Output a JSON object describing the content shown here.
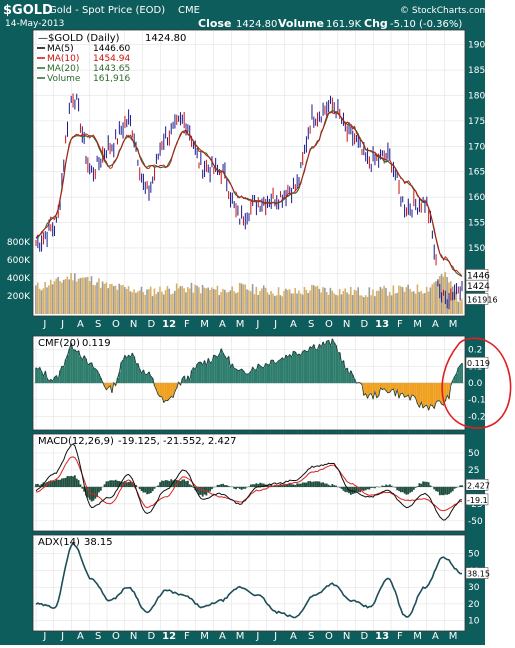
{
  "header": {
    "symbol": "$GOLD",
    "name": "Gold - Spot Price (EOD)",
    "exchange": "CME",
    "copyright": "© StockCharts.com",
    "date": "14-May-2013",
    "close_label": "Close",
    "close_value": "1424.80",
    "volume_label": "Volume",
    "volume_value": "161.9K",
    "chg_label": "Chg",
    "chg_value": "-5.10 (-0.36%)"
  },
  "colors": {
    "frame": "#0e5d5d",
    "price": "#1a1a8c",
    "ma5": "#1a1a1a",
    "ma10": "#cc1111",
    "ma20": "#2e6b2e",
    "volume": "#d6b06a",
    "cmf_pos": "#2d7c6c",
    "cmf_neg": "#f0a020",
    "macd": "#111111",
    "signal": "#dd2222",
    "hist": "#1f4f3f",
    "adx": "#1d4f57",
    "annotation": "#e02020"
  },
  "x_months": [
    "J",
    "J",
    "A",
    "S",
    "O",
    "N",
    "D",
    "12",
    "F",
    "M",
    "A",
    "M",
    "J",
    "J",
    "A",
    "S",
    "O",
    "N",
    "D",
    "13",
    "F",
    "M",
    "A",
    "M"
  ],
  "price_panel": {
    "legend": [
      {
        "label": "$GOLD (Daily)",
        "value": "1424.80",
        "color": "#000000"
      },
      {
        "label": "MA(5)",
        "value": "1446.60",
        "color": "#000000"
      },
      {
        "label": "MA(10)",
        "value": "1454.94",
        "color": "#cc1111"
      },
      {
        "label": "MA(20)",
        "value": "1443.65",
        "color": "#2e6b2e"
      },
      {
        "label": "Volume",
        "value": "161,916",
        "color": "#2e6b2e"
      }
    ],
    "right_ticks": [
      "190",
      "185",
      "180",
      "175",
      "170",
      "165",
      "160",
      "155",
      "150",
      "145",
      "140"
    ],
    "left_ticks": [
      "800K",
      "600K",
      "400K",
      "200K"
    ],
    "last_labels": [
      "1446",
      "1424",
      "161916"
    ]
  },
  "cmf_panel": {
    "label": "CMF(20)",
    "value": "0.119",
    "ticks": [
      "0.2",
      "0.1",
      "0.0",
      "-0.1",
      "-0.2"
    ],
    "last_label": "0.119"
  },
  "macd_panel": {
    "label": "MACD(12,26,9)",
    "values": "-19.125, -21.552, 2.427",
    "ticks": [
      "50",
      "25",
      "0",
      "-25",
      "-50"
    ],
    "last_labels": [
      "2.427",
      "-19.1"
    ]
  },
  "adx_panel": {
    "label": "ADX(14)",
    "value": "38.15",
    "ticks": [
      "50",
      "40",
      "30",
      "20",
      "10"
    ],
    "last_label": "38.15"
  },
  "chart_data": [
    {
      "type": "line",
      "title": "$GOLD (Daily)",
      "x": [
        "2011-06",
        "2011-07",
        "2011-08",
        "2011-09",
        "2011-10",
        "2011-11",
        "2011-12",
        "2012-01",
        "2012-02",
        "2012-03",
        "2012-04",
        "2012-05",
        "2012-06",
        "2012-07",
        "2012-08",
        "2012-09",
        "2012-10",
        "2012-11",
        "2012-12",
        "2013-01",
        "2013-02",
        "2013-03",
        "2013-04",
        "2013-05"
      ],
      "series": [
        {
          "name": "$GOLD (Daily)",
          "values": [
            1510,
            1540,
            1800,
            1650,
            1700,
            1750,
            1610,
            1720,
            1750,
            1660,
            1650,
            1560,
            1590,
            1600,
            1620,
            1760,
            1780,
            1720,
            1670,
            1680,
            1580,
            1590,
            1400,
            1425
          ]
        },
        {
          "name": "MA(20)",
          "values": [
            1520,
            1560,
            1720,
            1720,
            1660,
            1720,
            1660,
            1660,
            1730,
            1690,
            1650,
            1600,
            1590,
            1590,
            1610,
            1700,
            1770,
            1740,
            1690,
            1670,
            1630,
            1590,
            1480,
            1444
          ]
        },
        {
          "name": "Volume",
          "values": [
            300000,
            350000,
            420000,
            380000,
            300000,
            280000,
            250000,
            270000,
            290000,
            280000,
            260000,
            290000,
            270000,
            250000,
            240000,
            280000,
            260000,
            250000,
            240000,
            260000,
            270000,
            280000,
            420000,
            162000
          ]
        }
      ],
      "ylim": [
        1370,
        1925
      ]
    },
    {
      "type": "area",
      "title": "CMF(20)",
      "x": [
        "2011-06",
        "2011-07",
        "2011-08",
        "2011-09",
        "2011-10",
        "2011-11",
        "2011-12",
        "2012-01",
        "2012-02",
        "2012-03",
        "2012-04",
        "2012-05",
        "2012-06",
        "2012-07",
        "2012-08",
        "2012-09",
        "2012-10",
        "2012-11",
        "2012-12",
        "2013-01",
        "2013-02",
        "2013-03",
        "2013-04",
        "2013-05"
      ],
      "values": [
        0.08,
        0.02,
        0.22,
        0.1,
        -0.04,
        0.18,
        0.05,
        -0.12,
        0.02,
        0.12,
        0.18,
        0.06,
        0.1,
        0.14,
        0.18,
        0.22,
        0.24,
        0.05,
        -0.08,
        -0.04,
        -0.08,
        -0.14,
        -0.12,
        0.119
      ],
      "ylim": [
        -0.27,
        0.27
      ]
    },
    {
      "type": "line",
      "title": "MACD(12,26,9)",
      "x": [
        "2011-06",
        "2011-07",
        "2011-08",
        "2011-09",
        "2011-10",
        "2011-11",
        "2011-12",
        "2012-01",
        "2012-02",
        "2012-03",
        "2012-04",
        "2012-05",
        "2012-06",
        "2012-07",
        "2012-08",
        "2012-09",
        "2012-10",
        "2012-11",
        "2012-12",
        "2013-01",
        "2013-02",
        "2013-03",
        "2013-04",
        "2013-05"
      ],
      "series": [
        {
          "name": "MACD",
          "values": [
            -5,
            20,
            62,
            -30,
            -15,
            18,
            -40,
            -5,
            25,
            -18,
            -10,
            -25,
            0,
            5,
            10,
            30,
            35,
            -5,
            -15,
            -5,
            -30,
            -10,
            -48,
            -19.125
          ]
        },
        {
          "name": "Signal",
          "values": [
            -8,
            10,
            45,
            -10,
            -25,
            10,
            -30,
            -15,
            15,
            -5,
            -15,
            -22,
            -5,
            2,
            6,
            22,
            32,
            5,
            -12,
            -8,
            -20,
            -18,
            -35,
            -21.552
          ]
        },
        {
          "name": "Histogram",
          "values": [
            3,
            10,
            17,
            -20,
            10,
            8,
            -10,
            10,
            10,
            -13,
            5,
            -3,
            5,
            3,
            4,
            8,
            3,
            -10,
            -3,
            3,
            -10,
            8,
            -13,
            2.427
          ]
        }
      ],
      "ylim": [
        -62,
        75
      ]
    },
    {
      "type": "line",
      "title": "ADX(14)",
      "x": [
        "2011-06",
        "2011-07",
        "2011-08",
        "2011-09",
        "2011-10",
        "2011-11",
        "2011-12",
        "2012-01",
        "2012-02",
        "2012-03",
        "2012-04",
        "2012-05",
        "2012-06",
        "2012-07",
        "2012-08",
        "2012-09",
        "2012-10",
        "2012-11",
        "2012-12",
        "2013-01",
        "2013-02",
        "2013-03",
        "2013-04",
        "2013-05"
      ],
      "values": [
        20,
        18,
        56,
        35,
        22,
        30,
        15,
        28,
        25,
        18,
        22,
        30,
        25,
        15,
        12,
        25,
        32,
        22,
        18,
        35,
        12,
        30,
        48,
        38.15
      ],
      "ylim": [
        5,
        60
      ]
    }
  ]
}
